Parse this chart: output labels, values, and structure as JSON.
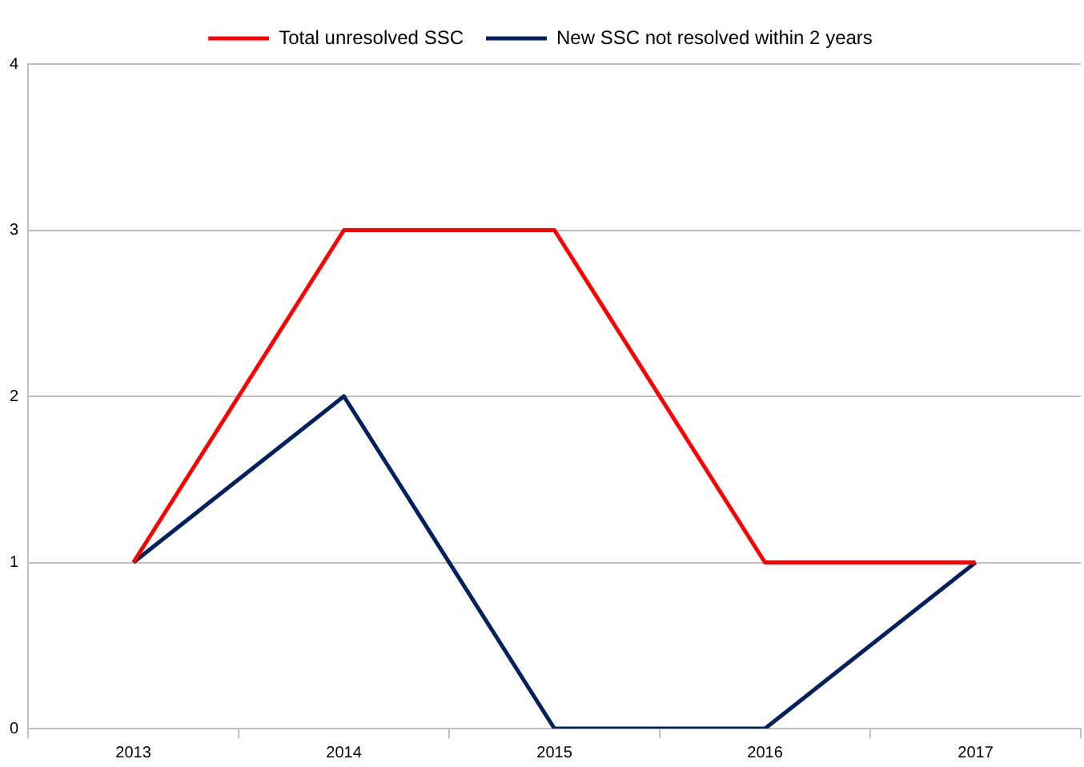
{
  "chart_data": {
    "type": "line",
    "categories": [
      "2013",
      "2014",
      "2015",
      "2016",
      "2017"
    ],
    "series": [
      {
        "name": "Total unresolved SSC",
        "color": "#ff0000",
        "values": [
          1,
          3,
          3,
          1,
          1
        ]
      },
      {
        "name": "New SSC not resolved within 2 years",
        "color": "#002060",
        "values": [
          1,
          2,
          0,
          0,
          1
        ]
      }
    ],
    "ylim": [
      0,
      4
    ],
    "yticks": [
      0,
      1,
      2,
      3,
      4
    ],
    "grid": "y",
    "legend": "top",
    "marker": "none",
    "line_style": "solid"
  }
}
